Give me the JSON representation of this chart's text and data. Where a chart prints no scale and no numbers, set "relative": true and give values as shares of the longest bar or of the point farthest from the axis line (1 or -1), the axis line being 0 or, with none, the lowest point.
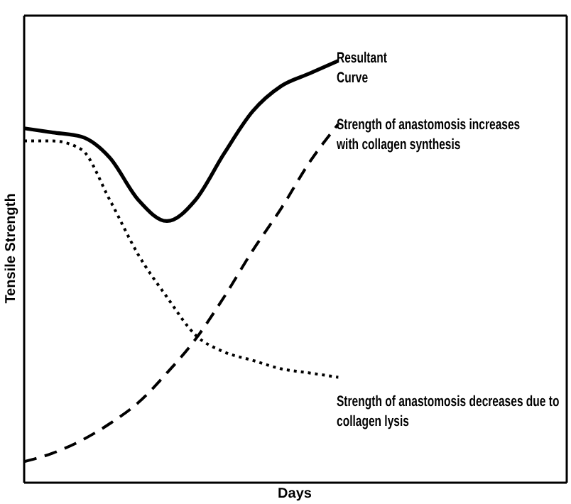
{
  "chart_data": {
    "type": "line",
    "relative": true,
    "xlabel": "Days",
    "ylabel": "Tensile Strength",
    "marker": "none",
    "categories": [
      null,
      null,
      null,
      null,
      null,
      null,
      null,
      null,
      null,
      null,
      null,
      null,
      null,
      null,
      null,
      null,
      null,
      null,
      null,
      null
    ],
    "series": [
      {
        "color": "#000000",
        "line_style": "solid",
        "values": [
          0.84,
          0.83,
          0.82,
          0.77,
          0.67,
          0.62,
          0.67,
          0.78,
          0.88,
          0.94,
          0.97,
          1,
          null,
          null,
          null,
          null,
          null,
          null,
          null,
          null
        ]
      },
      {
        "color": "#000000",
        "line_style": "dashed",
        "values": [
          0.05,
          0.07,
          0.1,
          0.14,
          0.19,
          0.26,
          0.34,
          0.44,
          0.55,
          0.65,
          0.76,
          0.85,
          null,
          null,
          null,
          null,
          null,
          null,
          null,
          null
        ]
      },
      {
        "color": "#000000",
        "line_style": "dotted",
        "values": [
          0.81,
          0.81,
          0.79,
          0.67,
          0.54,
          0.44,
          0.35,
          0.31,
          0.29,
          0.27,
          0.26,
          0.25,
          null,
          null,
          null,
          null,
          null,
          null,
          null,
          null
        ]
      }
    ],
    "annotations": [
      "Resultant\nCurve",
      "Strength of anastomosis increases\nwith collagen synthesis",
      "Strength of anastomosis decreases due to\ncollagen lysis"
    ]
  }
}
